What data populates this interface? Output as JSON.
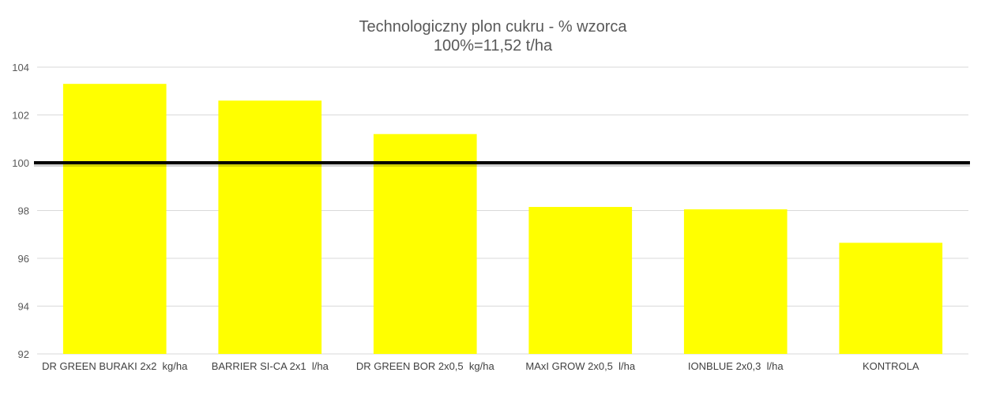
{
  "chart_data": {
    "type": "bar",
    "title": "Technologiczny plon cukru - % wzorca",
    "subtitle": "100%=11,52 t/ha",
    "categories": [
      "DR GREEN BURAKI 2x2  kg/ha",
      "BARRIER SI-CA 2x1  l/ha",
      "DR GREEN BOR 2x0,5  kg/ha",
      "MAxI GROW 2x0,5  l/ha",
      "IONBLUE 2x0,3  l/ha",
      "KONTROLA"
    ],
    "values": [
      103.3,
      102.6,
      101.2,
      98.15,
      98.05,
      96.65
    ],
    "ylim": [
      92,
      104
    ],
    "yticks": [
      92,
      94,
      96,
      98,
      100,
      102,
      104
    ],
    "ytick_labels": [
      "92",
      "94",
      "96",
      "98",
      "100",
      "102",
      "104"
    ],
    "reference_line": 100,
    "grid": true,
    "legend": false,
    "colors": {
      "bar": "#FFFF00",
      "reference_line": "#000000",
      "grid": "#D9D9D9",
      "text": "#595959"
    }
  }
}
